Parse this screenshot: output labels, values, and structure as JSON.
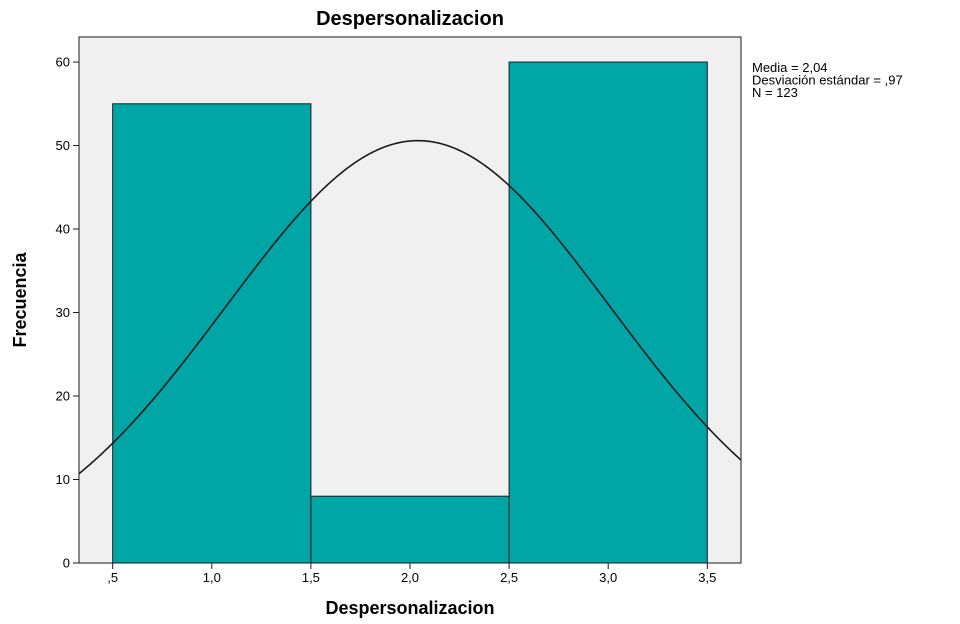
{
  "chart_data": {
    "type": "bar",
    "title": "Despersonalizacion",
    "xlabel": "Despersonalizacion",
    "ylabel": "Frecuencia",
    "xlim": [
      0.33,
      3.67
    ],
    "ylim": [
      0,
      63
    ],
    "x_ticks": [
      0.5,
      1.0,
      1.5,
      2.0,
      2.5,
      3.0,
      3.5
    ],
    "x_tick_labels": [
      ",5",
      "1,0",
      "1,5",
      "2,0",
      "2,5",
      "3,0",
      "3,5"
    ],
    "y_ticks": [
      0,
      10,
      20,
      30,
      40,
      50,
      60
    ],
    "y_tick_labels": [
      "0",
      "10",
      "20",
      "30",
      "40",
      "50",
      "60"
    ],
    "bins": [
      {
        "start": 0.5,
        "end": 1.5,
        "value": 55
      },
      {
        "start": 1.5,
        "end": 2.5,
        "value": 8
      },
      {
        "start": 2.5,
        "end": 3.5,
        "value": 60
      }
    ],
    "normal_curve": {
      "mean": 2.04,
      "sd": 0.97,
      "n": 123,
      "bin_width": 1.0
    },
    "stats": [
      "Media = 2,04",
      "Desviación estándar = ,97",
      "N = 123"
    ],
    "colors": {
      "bar_fill": "#00A6A6",
      "bar_stroke": "#1a1a1a",
      "plot_background": "#F0F0F0",
      "curve": "#1a1a1a"
    },
    "grid": false,
    "legend": "none"
  }
}
